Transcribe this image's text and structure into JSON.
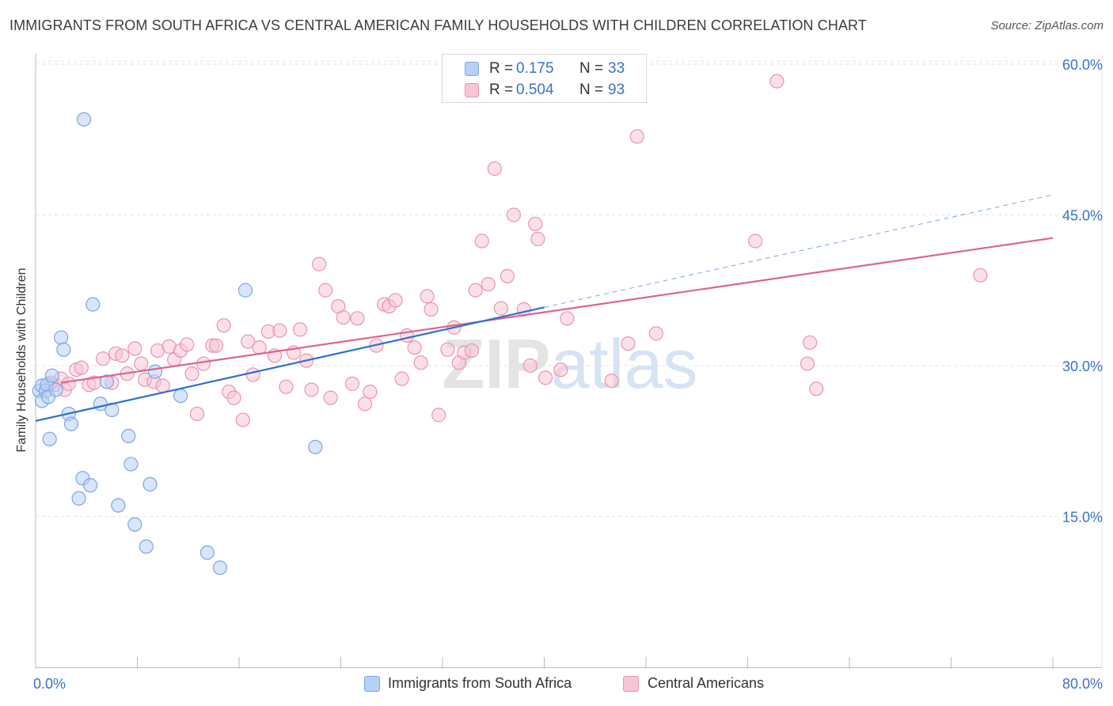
{
  "title": "IMMIGRANTS FROM SOUTH AFRICA VS CENTRAL AMERICAN FAMILY HOUSEHOLDS WITH CHILDREN CORRELATION CHART",
  "source": "Source: ZipAtlas.com",
  "watermark": "ZIPatlas",
  "legend_top": [
    {
      "r_label": "R =",
      "r_value": "0.175",
      "n_label": "N =",
      "n_value": "33"
    },
    {
      "r_label": "R =",
      "r_value": "0.504",
      "n_label": "N =",
      "n_value": "93"
    }
  ],
  "legend_bottom": [
    "Immigrants from South Africa",
    "Central Americans"
  ],
  "colors": {
    "blue_fill": "#b8d0f5",
    "blue_stroke": "#7ea6e0",
    "blue_line": "#2f6fd0",
    "pink_fill": "#f7c6d6",
    "pink_stroke": "#e895b0",
    "pink_line": "#e0628f",
    "axis_text": "#3b72c9",
    "grid": "#e2e2e2"
  },
  "chart_data": {
    "type": "scatter",
    "title": "IMMIGRANTS FROM SOUTH AFRICA VS CENTRAL AMERICAN FAMILY HOUSEHOLDS WITH CHILDREN CORRELATION CHART",
    "xlabel": "",
    "ylabel": "Family Households with Children",
    "xlim": [
      0,
      80
    ],
    "ylim": [
      0,
      63
    ],
    "x_tick_labels": [
      "0.0%",
      "80.0%"
    ],
    "y_ticks": [
      15,
      30,
      45,
      60
    ],
    "y_tick_labels": [
      "15.0%",
      "30.0%",
      "45.0%",
      "60.0%"
    ],
    "grid": true,
    "legend_placement": "top-center",
    "series": [
      {
        "name": "Immigrants from South Africa",
        "r": 0.175,
        "n": 33,
        "points": [
          [
            0.3,
            27.5
          ],
          [
            0.5,
            26.5
          ],
          [
            0.5,
            28.0
          ],
          [
            0.8,
            27.5
          ],
          [
            0.9,
            28.1
          ],
          [
            1.0,
            26.9
          ],
          [
            1.1,
            22.7
          ],
          [
            1.3,
            29.0
          ],
          [
            1.6,
            27.6
          ],
          [
            2.0,
            32.8
          ],
          [
            2.2,
            31.6
          ],
          [
            2.6,
            25.2
          ],
          [
            2.8,
            24.2
          ],
          [
            3.4,
            16.8
          ],
          [
            3.7,
            18.8
          ],
          [
            3.8,
            54.5
          ],
          [
            4.3,
            18.1
          ],
          [
            4.5,
            36.1
          ],
          [
            5.1,
            26.2
          ],
          [
            5.6,
            28.4
          ],
          [
            6.0,
            25.6
          ],
          [
            6.5,
            16.1
          ],
          [
            7.3,
            23.0
          ],
          [
            7.5,
            20.2
          ],
          [
            7.8,
            14.2
          ],
          [
            8.7,
            12.0
          ],
          [
            9.0,
            18.2
          ],
          [
            9.4,
            29.4
          ],
          [
            11.4,
            27.0
          ],
          [
            13.5,
            11.4
          ],
          [
            14.5,
            9.9
          ],
          [
            16.5,
            37.5
          ],
          [
            22.0,
            21.9
          ]
        ],
        "trend_solid": [
          [
            0.0,
            24.5
          ],
          [
            40.0,
            35.8
          ]
        ],
        "trend_dashed": [
          [
            40.0,
            35.8
          ],
          [
            80.0,
            47.0
          ]
        ]
      },
      {
        "name": "Central Americans",
        "r": 0.504,
        "n": 93,
        "points": [
          [
            1.5,
            28.1
          ],
          [
            2.0,
            28.7
          ],
          [
            2.3,
            27.6
          ],
          [
            2.6,
            28.2
          ],
          [
            3.2,
            29.6
          ],
          [
            3.6,
            29.8
          ],
          [
            4.2,
            28.1
          ],
          [
            4.6,
            28.3
          ],
          [
            5.3,
            30.7
          ],
          [
            6.0,
            28.3
          ],
          [
            6.3,
            31.2
          ],
          [
            6.8,
            31.0
          ],
          [
            7.2,
            29.2
          ],
          [
            7.8,
            31.7
          ],
          [
            8.3,
            30.2
          ],
          [
            8.6,
            28.6
          ],
          [
            9.3,
            28.4
          ],
          [
            9.6,
            31.5
          ],
          [
            10.0,
            28.0
          ],
          [
            10.5,
            31.9
          ],
          [
            10.9,
            30.6
          ],
          [
            11.4,
            31.5
          ],
          [
            11.9,
            32.1
          ],
          [
            12.3,
            29.2
          ],
          [
            12.7,
            25.2
          ],
          [
            13.2,
            30.2
          ],
          [
            13.9,
            32.0
          ],
          [
            14.2,
            32.0
          ],
          [
            14.8,
            34.0
          ],
          [
            15.2,
            27.4
          ],
          [
            15.6,
            26.8
          ],
          [
            16.3,
            24.6
          ],
          [
            16.7,
            32.4
          ],
          [
            17.1,
            29.1
          ],
          [
            17.6,
            31.8
          ],
          [
            18.3,
            33.4
          ],
          [
            18.8,
            31.0
          ],
          [
            19.2,
            33.5
          ],
          [
            19.7,
            27.9
          ],
          [
            20.3,
            31.3
          ],
          [
            20.8,
            33.6
          ],
          [
            21.3,
            30.5
          ],
          [
            21.7,
            27.6
          ],
          [
            22.3,
            40.1
          ],
          [
            22.8,
            37.5
          ],
          [
            23.2,
            26.8
          ],
          [
            23.8,
            35.9
          ],
          [
            24.2,
            34.8
          ],
          [
            24.9,
            28.2
          ],
          [
            25.3,
            34.7
          ],
          [
            25.9,
            26.2
          ],
          [
            26.3,
            27.4
          ],
          [
            26.8,
            32.0
          ],
          [
            27.4,
            36.1
          ],
          [
            27.8,
            35.9
          ],
          [
            28.3,
            36.5
          ],
          [
            28.8,
            28.7
          ],
          [
            29.2,
            33.0
          ],
          [
            29.8,
            31.8
          ],
          [
            30.3,
            30.3
          ],
          [
            30.8,
            36.9
          ],
          [
            31.1,
            35.6
          ],
          [
            31.7,
            25.1
          ],
          [
            32.4,
            31.6
          ],
          [
            32.9,
            33.8
          ],
          [
            33.3,
            30.3
          ],
          [
            33.7,
            31.3
          ],
          [
            34.3,
            31.5
          ],
          [
            34.6,
            37.5
          ],
          [
            35.1,
            42.4
          ],
          [
            35.6,
            38.1
          ],
          [
            36.1,
            49.6
          ],
          [
            36.6,
            35.7
          ],
          [
            37.1,
            38.9
          ],
          [
            37.6,
            45.0
          ],
          [
            38.4,
            35.6
          ],
          [
            38.9,
            30.0
          ],
          [
            39.3,
            44.1
          ],
          [
            39.5,
            42.6
          ],
          [
            40.1,
            28.8
          ],
          [
            41.3,
            29.6
          ],
          [
            41.8,
            34.7
          ],
          [
            45.3,
            28.5
          ],
          [
            46.6,
            32.2
          ],
          [
            47.3,
            52.8
          ],
          [
            48.8,
            33.2
          ],
          [
            56.6,
            42.4
          ],
          [
            58.3,
            58.3
          ],
          [
            60.7,
            30.2
          ],
          [
            60.9,
            32.3
          ],
          [
            61.4,
            27.7
          ],
          [
            74.3,
            39.0
          ],
          [
            1.2,
            28.3
          ]
        ],
        "trend_solid": [
          [
            2.0,
            28.3
          ],
          [
            80.0,
            42.7
          ]
        ]
      }
    ]
  }
}
